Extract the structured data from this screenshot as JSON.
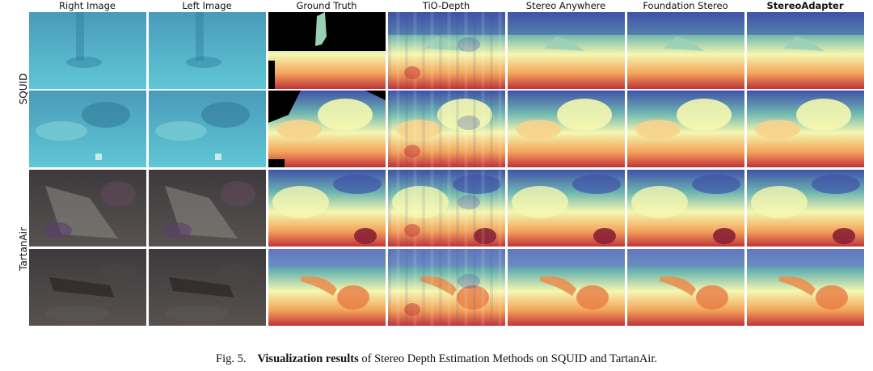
{
  "columns": [
    {
      "label": "Right Image",
      "kind": "rgb"
    },
    {
      "label": "Left Image",
      "kind": "rgb"
    },
    {
      "label": "Ground Truth",
      "kind": "gt"
    },
    {
      "label": "TiO-Depth",
      "kind": "tio"
    },
    {
      "label": "Stereo Anywhere",
      "kind": "depth"
    },
    {
      "label": "Foundation Stereo",
      "kind": "depth"
    },
    {
      "label": "StereoAdapter",
      "kind": "depth",
      "bold": true
    }
  ],
  "row_groups": [
    {
      "label": "SQUID",
      "rows": 2,
      "scene": "underwater"
    },
    {
      "label": "TartanAir",
      "rows": 2,
      "scene": "dark"
    }
  ],
  "colors": {
    "underwater_top": "#4a9ab8",
    "underwater_bottom": "#5fc7d6",
    "dark_top": "#3e3a3d",
    "dark_bottom": "#57524f",
    "spectral_far": "#3f52a8",
    "spectral_mid": "#f5f7b0",
    "spectral_near": "#c0323a"
  },
  "caption": {
    "prefix": "Fig. 5.",
    "bold": "Visualization results",
    "rest": " of Stereo Depth Estimation Methods on SQUID and TartanAir."
  }
}
